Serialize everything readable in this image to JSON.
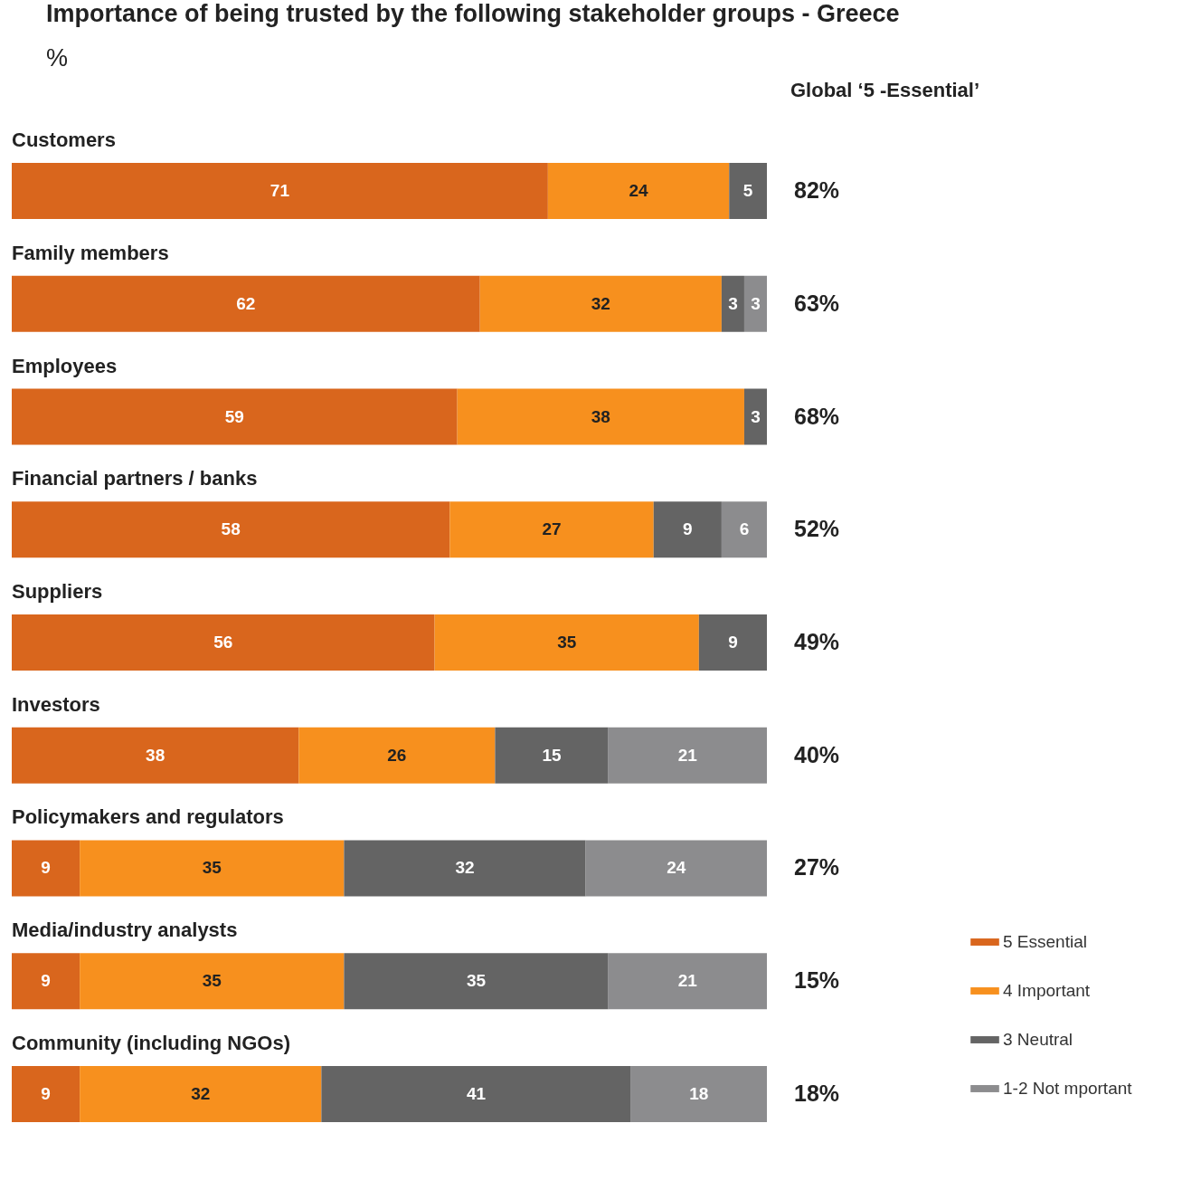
{
  "chart_data": {
    "type": "bar",
    "orientation": "horizontal",
    "stacked": true,
    "data_labels": true,
    "title": "Importance of being trusted by the following stakeholder groups - Greece",
    "subtitle": "%",
    "categories": [
      "Customers",
      "Family members",
      "Employees",
      "Financial partners / banks",
      "Suppliers",
      "Investors",
      "Policymakers and regulators",
      "Media/industry analysts",
      "Community (including NGOs)"
    ],
    "series": [
      {
        "name": "5 Essential",
        "color": "#d9661d",
        "values": [
          71,
          62,
          59,
          58,
          56,
          38,
          9,
          9,
          9
        ]
      },
      {
        "name": "4 Important",
        "color": "#f7901e",
        "values": [
          24,
          32,
          38,
          27,
          35,
          26,
          35,
          35,
          32
        ]
      },
      {
        "name": "3 Neutral",
        "color": "#646464",
        "values": [
          5,
          3,
          3,
          9,
          9,
          15,
          32,
          35,
          41
        ]
      },
      {
        "name": "1-2 Not mportant",
        "color": "#8c8c8e",
        "values": [
          null,
          3,
          null,
          6,
          null,
          21,
          24,
          21,
          18
        ]
      }
    ],
    "legend": "bottom right",
    "annotations": [
      "Global ‘5 -Essential’",
      "82%",
      "63%",
      "68%",
      "52%",
      "49%",
      "40%",
      "27%",
      "15%",
      "18%"
    ]
  }
}
